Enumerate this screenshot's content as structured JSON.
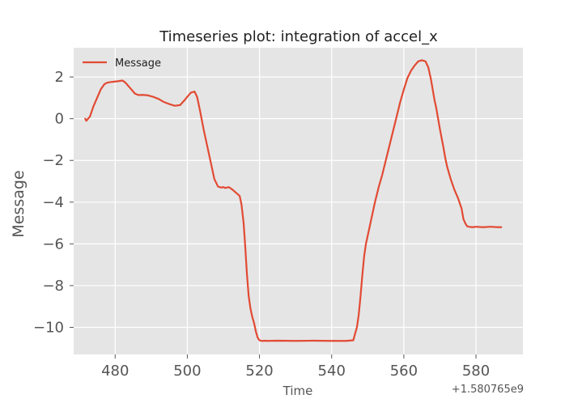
{
  "chart_data": {
    "type": "line",
    "title": "Timeseries plot: integration of accel_x",
    "xlabel": "Time",
    "ylabel": "Message",
    "x_offset_label": "+1.580765e9",
    "xlim": [
      468.5,
      593
    ],
    "ylim": [
      -11.3,
      3.4
    ],
    "x_ticks": [
      480,
      500,
      520,
      540,
      560,
      580
    ],
    "x_tick_labels": [
      "480",
      "500",
      "520",
      "540",
      "560",
      "580"
    ],
    "y_ticks": [
      2,
      0,
      -2,
      -4,
      -6,
      -8,
      -10
    ],
    "y_tick_labels": [
      "2",
      "0",
      "−2",
      "−4",
      "−6",
      "−8",
      "−10"
    ],
    "grid": true,
    "legend_position": "upper-left",
    "colors": {
      "series": "#e24a33",
      "background": "#e5e5e5",
      "grid": "#ffffff",
      "text": "#555555"
    },
    "series": [
      {
        "name": "Message",
        "x": [
          471.7,
          472.0,
          473.0,
          474.0,
          475.0,
          476.0,
          477.0,
          477.7,
          478.5,
          480.0,
          481.0,
          482.0,
          482.7,
          483.5,
          484.5,
          485.5,
          486.5,
          487.5,
          489.0,
          490.5,
          492.0,
          493.5,
          495.0,
          496.5,
          498.0,
          499.3,
          500.0,
          501.0,
          502.0,
          502.7,
          503.5,
          504.5,
          505.5,
          506.5,
          507.5,
          508.5,
          509.3,
          510.0,
          510.5,
          511.5,
          512.5,
          513.5,
          514.5,
          515.0,
          515.6,
          516.0,
          516.5,
          517.0,
          517.5,
          518.0,
          518.5,
          519.0,
          519.5,
          520.0,
          520.5,
          521.0,
          521.5,
          522.0,
          525.0,
          530.0,
          535.0,
          540.0,
          544.0,
          546.0,
          546.5,
          547.0,
          547.5,
          548.0,
          548.5,
          549.0,
          549.5,
          550.0,
          550.5,
          551.0,
          552.0,
          553.0,
          554.0,
          555.0,
          556.0,
          557.0,
          558.0,
          559.0,
          560.0,
          561.0,
          562.0,
          563.0,
          564.0,
          565.0,
          566.0,
          566.8,
          567.5,
          568.0,
          568.5,
          569.0,
          569.5,
          570.0,
          570.5,
          571.0,
          571.5,
          572.0,
          572.5,
          573.0,
          574.0,
          575.0,
          576.0,
          576.5,
          577.0,
          577.5,
          578.0,
          579.0,
          580.0,
          582.0,
          584.0,
          586.0,
          587.0
        ],
        "y": [
          0.0,
          -0.1,
          0.1,
          0.6,
          1.0,
          1.4,
          1.65,
          1.72,
          1.75,
          1.78,
          1.8,
          1.83,
          1.75,
          1.6,
          1.4,
          1.2,
          1.13,
          1.14,
          1.12,
          1.05,
          0.95,
          0.8,
          0.7,
          0.62,
          0.65,
          0.9,
          1.05,
          1.25,
          1.3,
          1.05,
          0.4,
          -0.5,
          -1.3,
          -2.1,
          -2.9,
          -3.25,
          -3.3,
          -3.28,
          -3.32,
          -3.28,
          -3.4,
          -3.55,
          -3.7,
          -4.1,
          -5.0,
          -6.0,
          -7.4,
          -8.5,
          -9.1,
          -9.5,
          -9.8,
          -10.2,
          -10.5,
          -10.62,
          -10.65,
          -10.65,
          -10.64,
          -10.65,
          -10.64,
          -10.65,
          -10.64,
          -10.65,
          -10.65,
          -10.62,
          -10.3,
          -10.0,
          -9.4,
          -8.5,
          -7.5,
          -6.6,
          -6.0,
          -5.6,
          -5.2,
          -4.8,
          -4.0,
          -3.3,
          -2.7,
          -2.0,
          -1.3,
          -0.6,
          0.1,
          0.8,
          1.4,
          1.95,
          2.3,
          2.55,
          2.75,
          2.8,
          2.75,
          2.45,
          1.9,
          1.4,
          0.9,
          0.5,
          0.0,
          -0.5,
          -0.95,
          -1.4,
          -1.9,
          -2.3,
          -2.6,
          -2.9,
          -3.4,
          -3.8,
          -4.3,
          -4.8,
          -5.0,
          -5.15,
          -5.18,
          -5.2,
          -5.18,
          -5.2,
          -5.18,
          -5.2,
          -5.2
        ]
      }
    ]
  }
}
